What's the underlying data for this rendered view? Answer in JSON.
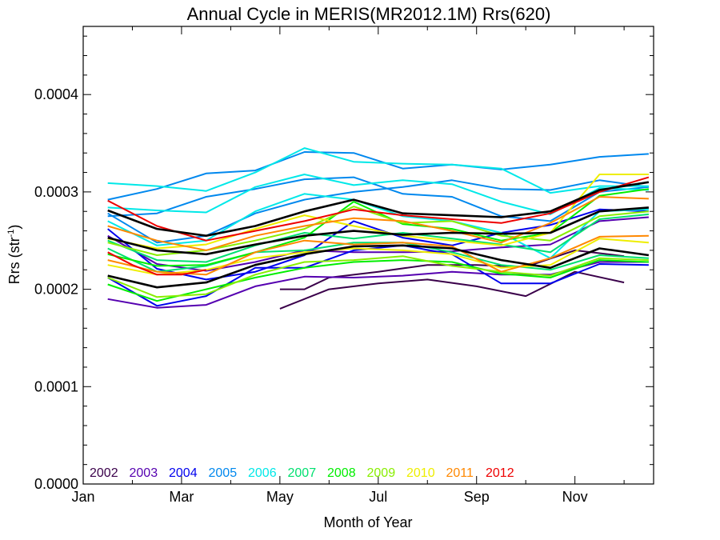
{
  "chart_data": {
    "type": "line",
    "title": "Annual Cycle in MERIS(MR2012.1M) Rrs(620)",
    "xlabel": "Month of Year",
    "ylabel_main": "Rrs (str",
    "ylabel_sup": "-1",
    "ylabel_end": ")",
    "xlim": [
      1,
      12.6
    ],
    "ylim": [
      0,
      0.00047
    ],
    "x_ticks": [
      {
        "value": 1,
        "label": "Jan"
      },
      {
        "value": 3,
        "label": "Mar"
      },
      {
        "value": 5,
        "label": "May"
      },
      {
        "value": 7,
        "label": "Jul"
      },
      {
        "value": 9,
        "label": "Sep"
      },
      {
        "value": 11,
        "label": "Nov"
      }
    ],
    "y_ticks": [
      {
        "value": 0,
        "label": "0.0000"
      },
      {
        "value": 0.0001,
        "label": "0.0001"
      },
      {
        "value": 0.0002,
        "label": "0.0002"
      },
      {
        "value": 0.0003,
        "label": "0.0003"
      },
      {
        "value": 0.0004,
        "label": "0.0004"
      }
    ],
    "legend": [
      {
        "label": "2002",
        "color": "#3a004a"
      },
      {
        "label": "2003",
        "color": "#5500b0"
      },
      {
        "label": "2004",
        "color": "#0000ee"
      },
      {
        "label": "2005",
        "color": "#0088ee"
      },
      {
        "label": "2006",
        "color": "#00e8e8"
      },
      {
        "label": "2007",
        "color": "#00e070"
      },
      {
        "label": "2008",
        "color": "#00ee00"
      },
      {
        "label": "2009",
        "color": "#88ee00"
      },
      {
        "label": "2010",
        "color": "#eeee00"
      },
      {
        "label": "2011",
        "color": "#ff8800"
      },
      {
        "label": "2012",
        "color": "#ee0000"
      }
    ],
    "series": [
      {
        "color": "#3a004a",
        "x": [
          5,
          6,
          7,
          8,
          9,
          10,
          11,
          12
        ],
        "values": [
          0.00018,
          0.0002,
          0.000206,
          0.00021,
          0.000203,
          0.000193,
          0.000218,
          0.000207
        ]
      },
      {
        "color": "#3a004a",
        "x": [
          5,
          5.5,
          6,
          7,
          8,
          9,
          10,
          11,
          12
        ],
        "values": [
          0.0002,
          0.0002,
          0.000212,
          0.000218,
          0.000225,
          0.000225,
          0.000223,
          0.00024,
          0.000234
        ]
      },
      {
        "color": "#5500b0",
        "x": [
          1.5,
          2.5,
          3.5,
          4.5,
          5.5,
          6.5,
          7.5,
          8.5,
          9.5,
          10.5,
          11.5,
          12.5
        ],
        "values": [
          0.00019,
          0.000181,
          0.000184,
          0.000203,
          0.000213,
          0.000212,
          0.000214,
          0.000218,
          0.000215,
          0.000215,
          0.000228,
          0.000228
        ]
      },
      {
        "color": "#5500b0",
        "x": [
          1.5,
          2.5,
          3.5,
          4.5,
          5.5,
          6.5,
          7.5,
          8.5,
          9.5,
          10.5,
          11.5,
          12.5
        ],
        "values": [
          0.000255,
          0.000226,
          0.000219,
          0.000228,
          0.00024,
          0.000238,
          0.000238,
          0.000239,
          0.000243,
          0.000246,
          0.00027,
          0.000274
        ]
      },
      {
        "color": "#0000ee",
        "x": [
          1.5,
          2.5,
          3.5,
          4.5,
          5.5,
          6.5,
          7.5,
          8.5,
          9.5,
          10.5,
          11.5,
          12.5
        ],
        "values": [
          0.000262,
          0.000221,
          0.00021,
          0.000218,
          0.000235,
          0.00027,
          0.000253,
          0.000245,
          0.000258,
          0.000266,
          0.000282,
          0.00028
        ]
      },
      {
        "color": "#0000ee",
        "x": [
          1.5,
          2.5,
          3.5,
          4.5,
          5.5,
          6.5,
          7.5,
          8.5,
          9.5,
          10.5,
          11.5,
          12.5
        ],
        "values": [
          0.000212,
          0.000183,
          0.000193,
          0.000222,
          0.000222,
          0.00024,
          0.000245,
          0.000236,
          0.000206,
          0.000206,
          0.000226,
          0.000225
        ]
      },
      {
        "color": "#0088ee",
        "x": [
          1.5,
          2.5,
          3.5,
          4.5,
          5.5,
          6.5,
          7.5,
          8.5,
          9.5,
          10.5,
          11.5,
          12.5
        ],
        "values": [
          0.000292,
          0.000303,
          0.000319,
          0.000322,
          0.000341,
          0.00034,
          0.000324,
          0.000328,
          0.000323,
          0.000328,
          0.000336,
          0.000339
        ]
      },
      {
        "color": "#0088ee",
        "x": [
          1.5,
          2.5,
          3.5,
          4.5,
          5.5,
          6.5,
          7.5,
          8.5,
          9.5,
          10.5,
          11.5,
          12.5
        ],
        "values": [
          0.000275,
          0.000278,
          0.000295,
          0.000303,
          0.000313,
          0.000315,
          0.000298,
          0.000295,
          0.000275,
          0.00027,
          0.0003,
          0.000305
        ]
      },
      {
        "color": "#0088ee",
        "x": [
          1.5,
          2.5,
          3.5,
          4.5,
          5.5,
          6.5,
          7.5,
          8.5,
          9.5,
          10.5,
          11.5,
          12.5
        ],
        "values": [
          0.000278,
          0.000248,
          0.000255,
          0.000278,
          0.000292,
          0.0003,
          0.000305,
          0.000312,
          0.000303,
          0.000302,
          0.000312,
          0.000305
        ]
      },
      {
        "color": "#00e8e8",
        "x": [
          1.5,
          2.5,
          3.5,
          4.5,
          5.5,
          6.5,
          7.5,
          8.5,
          9.5,
          10.5,
          11.5,
          12.5
        ],
        "values": [
          0.000309,
          0.000306,
          0.000301,
          0.00032,
          0.000345,
          0.000331,
          0.000329,
          0.000328,
          0.000324,
          0.000299,
          0.000306,
          0.000306
        ]
      },
      {
        "color": "#00e8e8",
        "x": [
          1.5,
          2.5,
          3.5,
          4.5,
          5.5,
          6.5,
          7.5,
          8.5,
          9.5,
          10.5,
          11.5,
          12.5
        ],
        "values": [
          0.000284,
          0.000281,
          0.000279,
          0.000305,
          0.000318,
          0.000307,
          0.000312,
          0.000308,
          0.00029,
          0.000277,
          0.000304,
          0.000302
        ]
      },
      {
        "color": "#00e8e8",
        "x": [
          1.5,
          2.5,
          3.5,
          4.5,
          5.5,
          6.5,
          7.5,
          8.5,
          9.5,
          10.5,
          11.5,
          12.5
        ],
        "values": [
          0.00027,
          0.000245,
          0.00025,
          0.00028,
          0.000298,
          0.000292,
          0.000275,
          0.00027,
          0.000258,
          0.000232,
          0.00028,
          0.000282
        ]
      },
      {
        "color": "#00e070",
        "x": [
          1.5,
          2.5,
          3.5,
          4.5,
          5.5,
          6.5,
          7.5,
          8.5,
          9.5,
          10.5,
          11.5,
          12.5
        ],
        "values": [
          0.00025,
          0.00023,
          0.000228,
          0.000245,
          0.000258,
          0.000252,
          0.000258,
          0.000252,
          0.000246,
          0.000238,
          0.000272,
          0.000277
        ]
      },
      {
        "color": "#00e070",
        "x": [
          1.5,
          2.5,
          3.5,
          4.5,
          5.5,
          6.5,
          7.5,
          8.5,
          9.5,
          10.5,
          11.5,
          12.5
        ],
        "values": [
          0.000242,
          0.000218,
          0.000224,
          0.000238,
          0.00024,
          0.000248,
          0.000248,
          0.000238,
          0.000225,
          0.00022,
          0.000235,
          0.000232
        ]
      },
      {
        "color": "#00ee00",
        "x": [
          1.5,
          2.5,
          3.5,
          4.5,
          5.5,
          6.5,
          7.5,
          8.5,
          9.5,
          10.5,
          11.5,
          12.5
        ],
        "values": [
          0.000236,
          0.000224,
          0.000225,
          0.000238,
          0.000253,
          0.00029,
          0.000267,
          0.000262,
          0.00025,
          0.000258,
          0.000296,
          0.000303
        ]
      },
      {
        "color": "#00ee00",
        "x": [
          1.5,
          2.5,
          3.5,
          4.5,
          5.5,
          6.5,
          7.5,
          8.5,
          9.5,
          10.5,
          11.5,
          12.5
        ],
        "values": [
          0.000205,
          0.000188,
          0.0002,
          0.000212,
          0.000222,
          0.000228,
          0.00023,
          0.000228,
          0.000216,
          0.000212,
          0.00023,
          0.000228
        ]
      },
      {
        "color": "#88ee00",
        "x": [
          1.5,
          2.5,
          3.5,
          4.5,
          5.5,
          6.5,
          7.5,
          8.5,
          9.5,
          10.5,
          11.5,
          12.5
        ],
        "values": [
          0.000248,
          0.000235,
          0.00024,
          0.00025,
          0.000262,
          0.000285,
          0.000268,
          0.00027,
          0.000255,
          0.00025,
          0.000275,
          0.00028
        ]
      },
      {
        "color": "#88ee00",
        "x": [
          1.5,
          2.5,
          3.5,
          4.5,
          5.5,
          6.5,
          7.5,
          8.5,
          9.5,
          10.5,
          11.5,
          12.5
        ],
        "values": [
          0.000212,
          0.000192,
          0.000195,
          0.000215,
          0.000228,
          0.00023,
          0.000234,
          0.000224,
          0.000218,
          0.000214,
          0.000232,
          0.00023
        ]
      },
      {
        "color": "#eeee00",
        "x": [
          1.5,
          2.5,
          3.5,
          4.5,
          5.5,
          6.5,
          7.5,
          8.5,
          9.5,
          10.5,
          11.5,
          12.5
        ],
        "values": [
          0.000252,
          0.000242,
          0.000246,
          0.000262,
          0.000276,
          0.000265,
          0.000255,
          0.00025,
          0.000245,
          0.000258,
          0.000318,
          0.000318
        ]
      },
      {
        "color": "#eeee00",
        "x": [
          1.5,
          2.5,
          3.5,
          4.5,
          5.5,
          6.5,
          7.5,
          8.5,
          9.5,
          10.5,
          11.5,
          12.5
        ],
        "values": [
          0.000225,
          0.000215,
          0.00022,
          0.000232,
          0.000238,
          0.000242,
          0.00024,
          0.000236,
          0.000222,
          0.000225,
          0.000252,
          0.000248
        ]
      },
      {
        "color": "#ff8800",
        "x": [
          1.5,
          2.5,
          3.5,
          4.5,
          5.5,
          6.5,
          7.5,
          8.5,
          9.5,
          10.5,
          11.5,
          12.5
        ],
        "values": [
          0.000265,
          0.00025,
          0.00024,
          0.000255,
          0.000265,
          0.000273,
          0.00027,
          0.00026,
          0.000248,
          0.000268,
          0.000295,
          0.000293
        ]
      },
      {
        "color": "#ff8800",
        "x": [
          1.5,
          2.5,
          3.5,
          4.5,
          5.5,
          6.5,
          7.5,
          8.5,
          9.5,
          10.5,
          11.5,
          12.5
        ],
        "values": [
          0.00023,
          0.000218,
          0.000215,
          0.000238,
          0.00025,
          0.000246,
          0.000248,
          0.000244,
          0.000218,
          0.000232,
          0.000254,
          0.000255
        ]
      },
      {
        "color": "#ee0000",
        "x": [
          1.5,
          2.5,
          3.5,
          4.5,
          5.5,
          6.5,
          7.5,
          8.5,
          9.5,
          10.5,
          11.5,
          12.5
        ],
        "values": [
          0.000291,
          0.000265,
          0.00025,
          0.00026,
          0.00027,
          0.000282,
          0.000276,
          0.000272,
          0.000268,
          0.000278,
          0.0003,
          0.000315
        ]
      },
      {
        "color": "#ee0000",
        "x": [
          1.5,
          2,
          2.5,
          3,
          3.5
        ],
        "values": [
          0.000238,
          0.000225,
          0.000215,
          0.000215,
          0.00022
        ]
      },
      {
        "color": "#000000",
        "x": [
          1.5,
          2.5,
          3.5,
          4.5,
          5.5,
          6.5,
          7.5,
          8.5,
          9.5,
          10.5,
          11.5,
          12.5
        ],
        "values": [
          0.000281,
          0.000262,
          0.000255,
          0.000265,
          0.00028,
          0.000292,
          0.000278,
          0.000276,
          0.000274,
          0.00028,
          0.000302,
          0.00031
        ]
      },
      {
        "color": "#000000",
        "x": [
          1.5,
          2.5,
          3.5,
          4.5,
          5.5,
          6.5,
          7.5,
          8.5,
          9.5,
          10.5,
          11.5,
          12.5
        ],
        "values": [
          0.000253,
          0.00024,
          0.000236,
          0.000246,
          0.000255,
          0.00026,
          0.000256,
          0.000258,
          0.000257,
          0.000258,
          0.00028,
          0.000284
        ]
      },
      {
        "color": "#000000",
        "x": [
          1.5,
          2.5,
          3.5,
          4.5,
          5.5,
          6.5,
          7.5,
          8.5,
          9.5,
          10.5,
          11.5,
          12.5
        ],
        "values": [
          0.000214,
          0.000202,
          0.000207,
          0.000225,
          0.000236,
          0.000244,
          0.000245,
          0.000242,
          0.00023,
          0.000222,
          0.000242,
          0.000235
        ]
      }
    ]
  }
}
